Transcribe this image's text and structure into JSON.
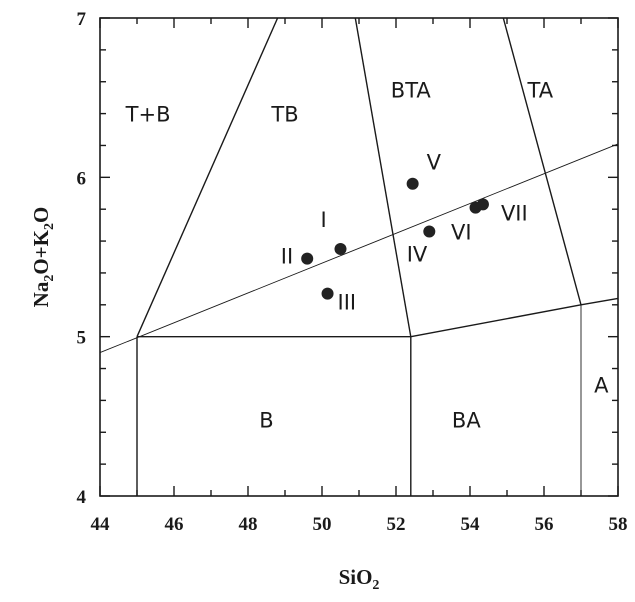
{
  "chart_data": {
    "type": "scatter",
    "title": "",
    "xlabel": "SiO",
    "xlabel_sub": "2",
    "ylabel_parts": [
      "Na",
      "2",
      "O+K",
      "2",
      "O"
    ],
    "xlim": [
      44,
      58
    ],
    "ylim": [
      4,
      7
    ],
    "x_ticks": [
      "44",
      "46",
      "48",
      "50",
      "52",
      "54",
      "56",
      "58"
    ],
    "y_ticks": [
      "4",
      "5",
      "6",
      "7"
    ],
    "grid": false,
    "points": [
      {
        "label": "I",
        "x": 50.5,
        "y": 5.55
      },
      {
        "label": "II",
        "x": 49.6,
        "y": 5.49
      },
      {
        "label": "III",
        "x": 50.15,
        "y": 5.27
      },
      {
        "label": "IV",
        "x": 52.9,
        "y": 5.66
      },
      {
        "label": "V",
        "x": 52.45,
        "y": 5.96
      },
      {
        "label": "VI",
        "x": 54.15,
        "y": 5.81
      },
      {
        "label": "VII",
        "x": 54.35,
        "y": 5.83
      }
    ],
    "regions": [
      "T+B",
      "TB",
      "BTA",
      "TA",
      "B",
      "BA",
      "A"
    ],
    "boundaries": [
      {
        "kind": "bold",
        "points": [
          [
            45,
            5
          ],
          [
            48.8,
            7
          ]
        ]
      },
      {
        "kind": "bold",
        "points": [
          [
            50.9,
            7
          ],
          [
            52.4,
            5
          ]
        ]
      },
      {
        "kind": "bold",
        "points": [
          [
            45,
            5
          ],
          [
            52.4,
            5
          ]
        ]
      },
      {
        "kind": "bold",
        "points": [
          [
            45,
            4
          ],
          [
            45,
            5
          ]
        ]
      },
      {
        "kind": "bold",
        "points": [
          [
            52.4,
            4
          ],
          [
            52.4,
            5
          ]
        ]
      },
      {
        "kind": "bold",
        "points": [
          [
            52.4,
            5
          ],
          [
            57,
            5.2
          ]
        ]
      },
      {
        "kind": "bold",
        "points": [
          [
            57,
            5.2
          ],
          [
            58,
            5.24
          ]
        ]
      },
      {
        "kind": "bold",
        "points": [
          [
            54.9,
            7
          ],
          [
            57,
            5.2
          ]
        ]
      },
      {
        "kind": "thin",
        "points": [
          [
            57,
            4
          ],
          [
            57,
            5.2
          ]
        ]
      },
      {
        "kind": "thin",
        "points": [
          [
            44,
            4.9
          ],
          [
            58,
            6.21
          ]
        ]
      }
    ]
  }
}
